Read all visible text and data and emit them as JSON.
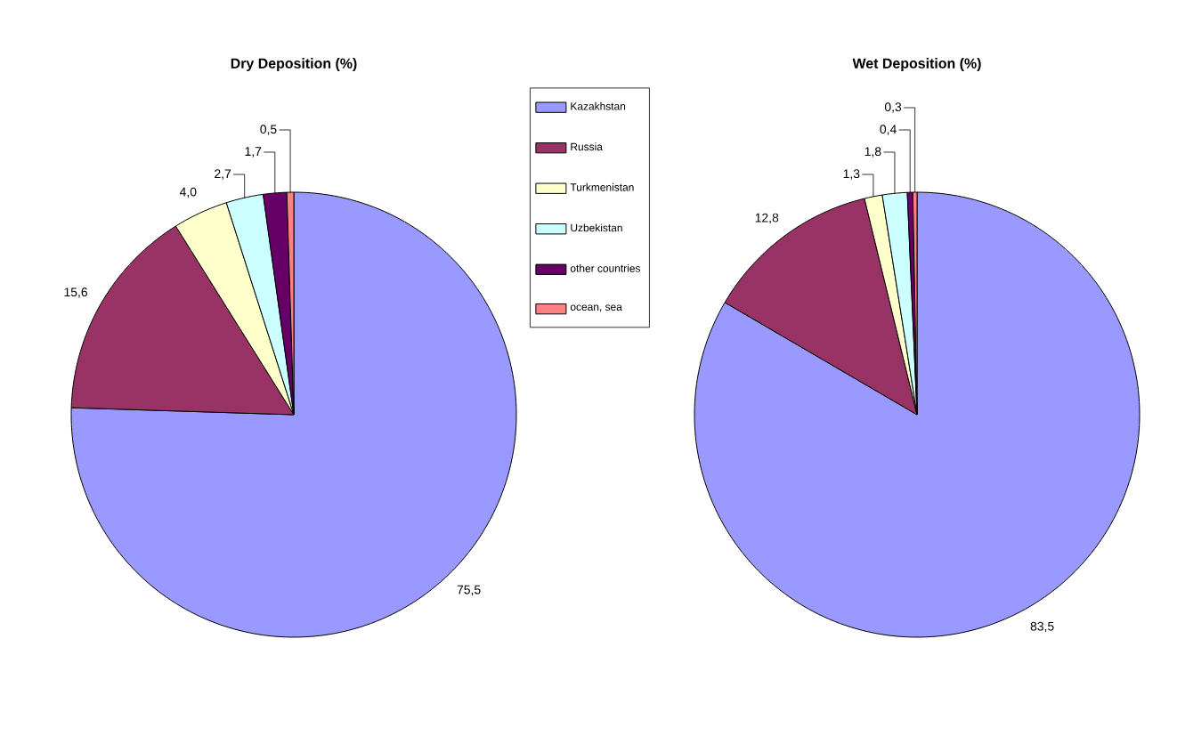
{
  "chart_data": [
    {
      "type": "pie",
      "title": "Dry Deposition (%)",
      "categories": [
        "Kazakhstan",
        "Russia",
        "Turkmenistan",
        "Uzbekistan",
        "other countries",
        "ocean, sea"
      ],
      "values": [
        75.5,
        15.6,
        4.0,
        2.7,
        1.7,
        0.5
      ],
      "value_labels": [
        "75,5",
        "15,6",
        "4,0",
        "2,7",
        "1,7",
        "0,5"
      ],
      "colors": [
        "#9999ff",
        "#993366",
        "#ffffcc",
        "#ccffff",
        "#660066",
        "#ff8080"
      ],
      "legend": "right"
    },
    {
      "type": "pie",
      "title": "Wet Deposition (%)",
      "categories": [
        null,
        null,
        null,
        null,
        null,
        null
      ],
      "values": [
        83.5,
        12.8,
        1.3,
        1.8,
        0.4,
        0.3
      ],
      "value_labels": [
        "83,5",
        "12,8",
        "1,3",
        "1,8",
        "0,4",
        "0,3"
      ],
      "colors": [
        "#9999ff",
        "#993366",
        "#ffffcc",
        "#ccffff",
        "#660066",
        "#ff8080"
      ]
    }
  ]
}
